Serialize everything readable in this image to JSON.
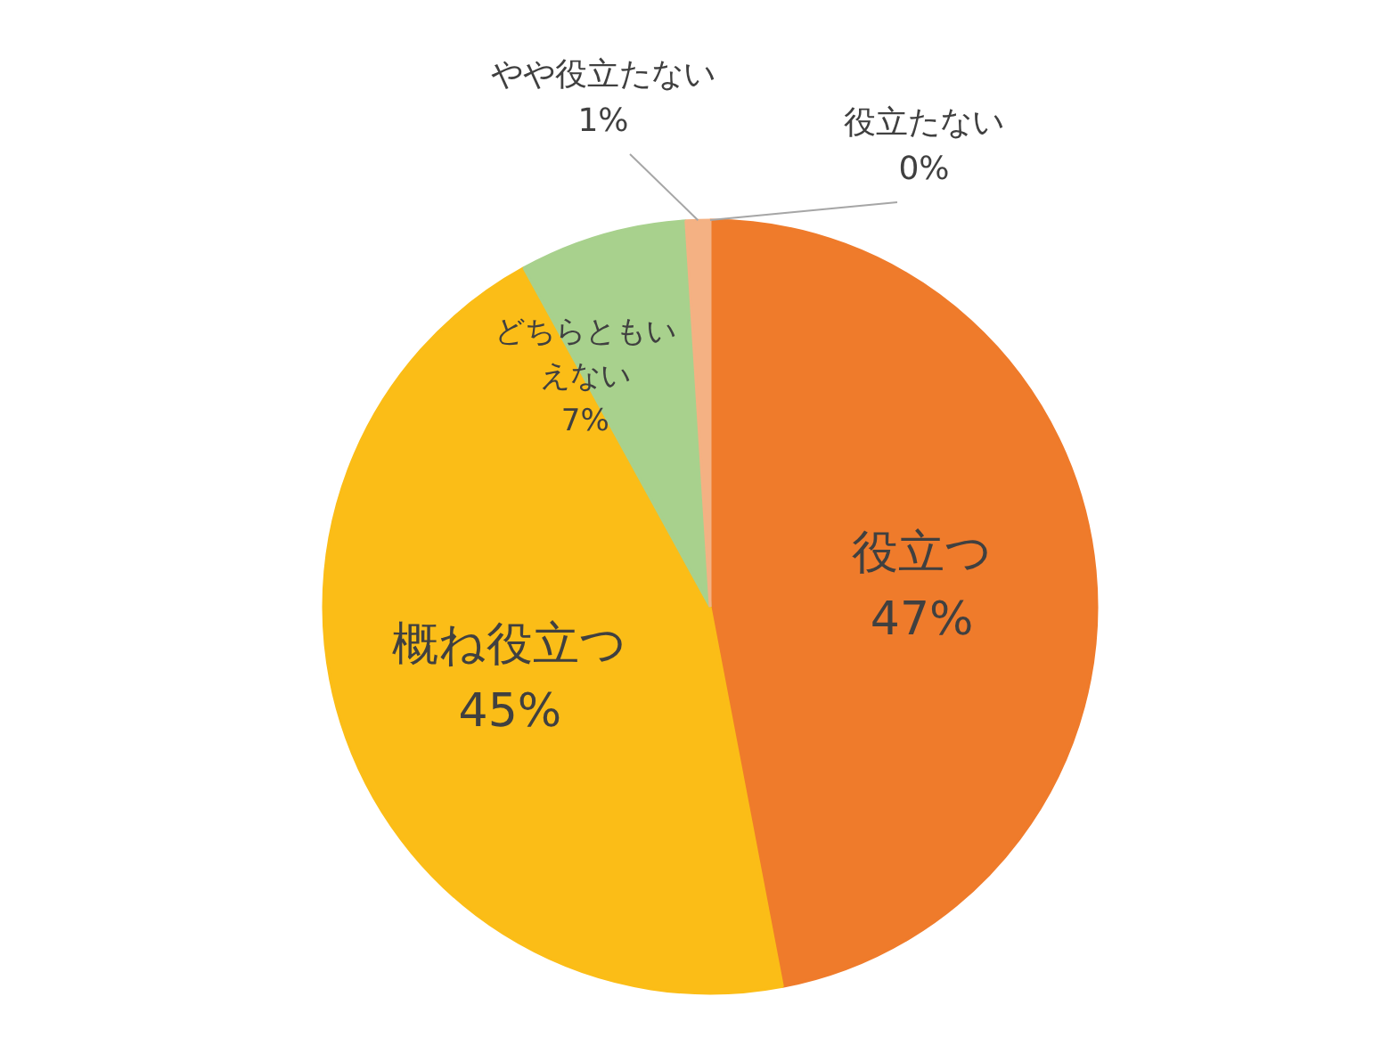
{
  "chart_data": {
    "type": "pie",
    "categories": [
      "役立つ",
      "概ね役立つ",
      "どちらともいえない",
      "やや役立たない",
      "役立たない"
    ],
    "values": [
      47,
      45,
      7,
      1,
      0
    ],
    "colors": [
      "#ef7b2b",
      "#fbbd17",
      "#a8d18d",
      "#f4b183",
      "#8a6d1e"
    ],
    "value_labels": [
      "47%",
      "45%",
      "7%",
      "1%",
      "0%"
    ]
  }
}
